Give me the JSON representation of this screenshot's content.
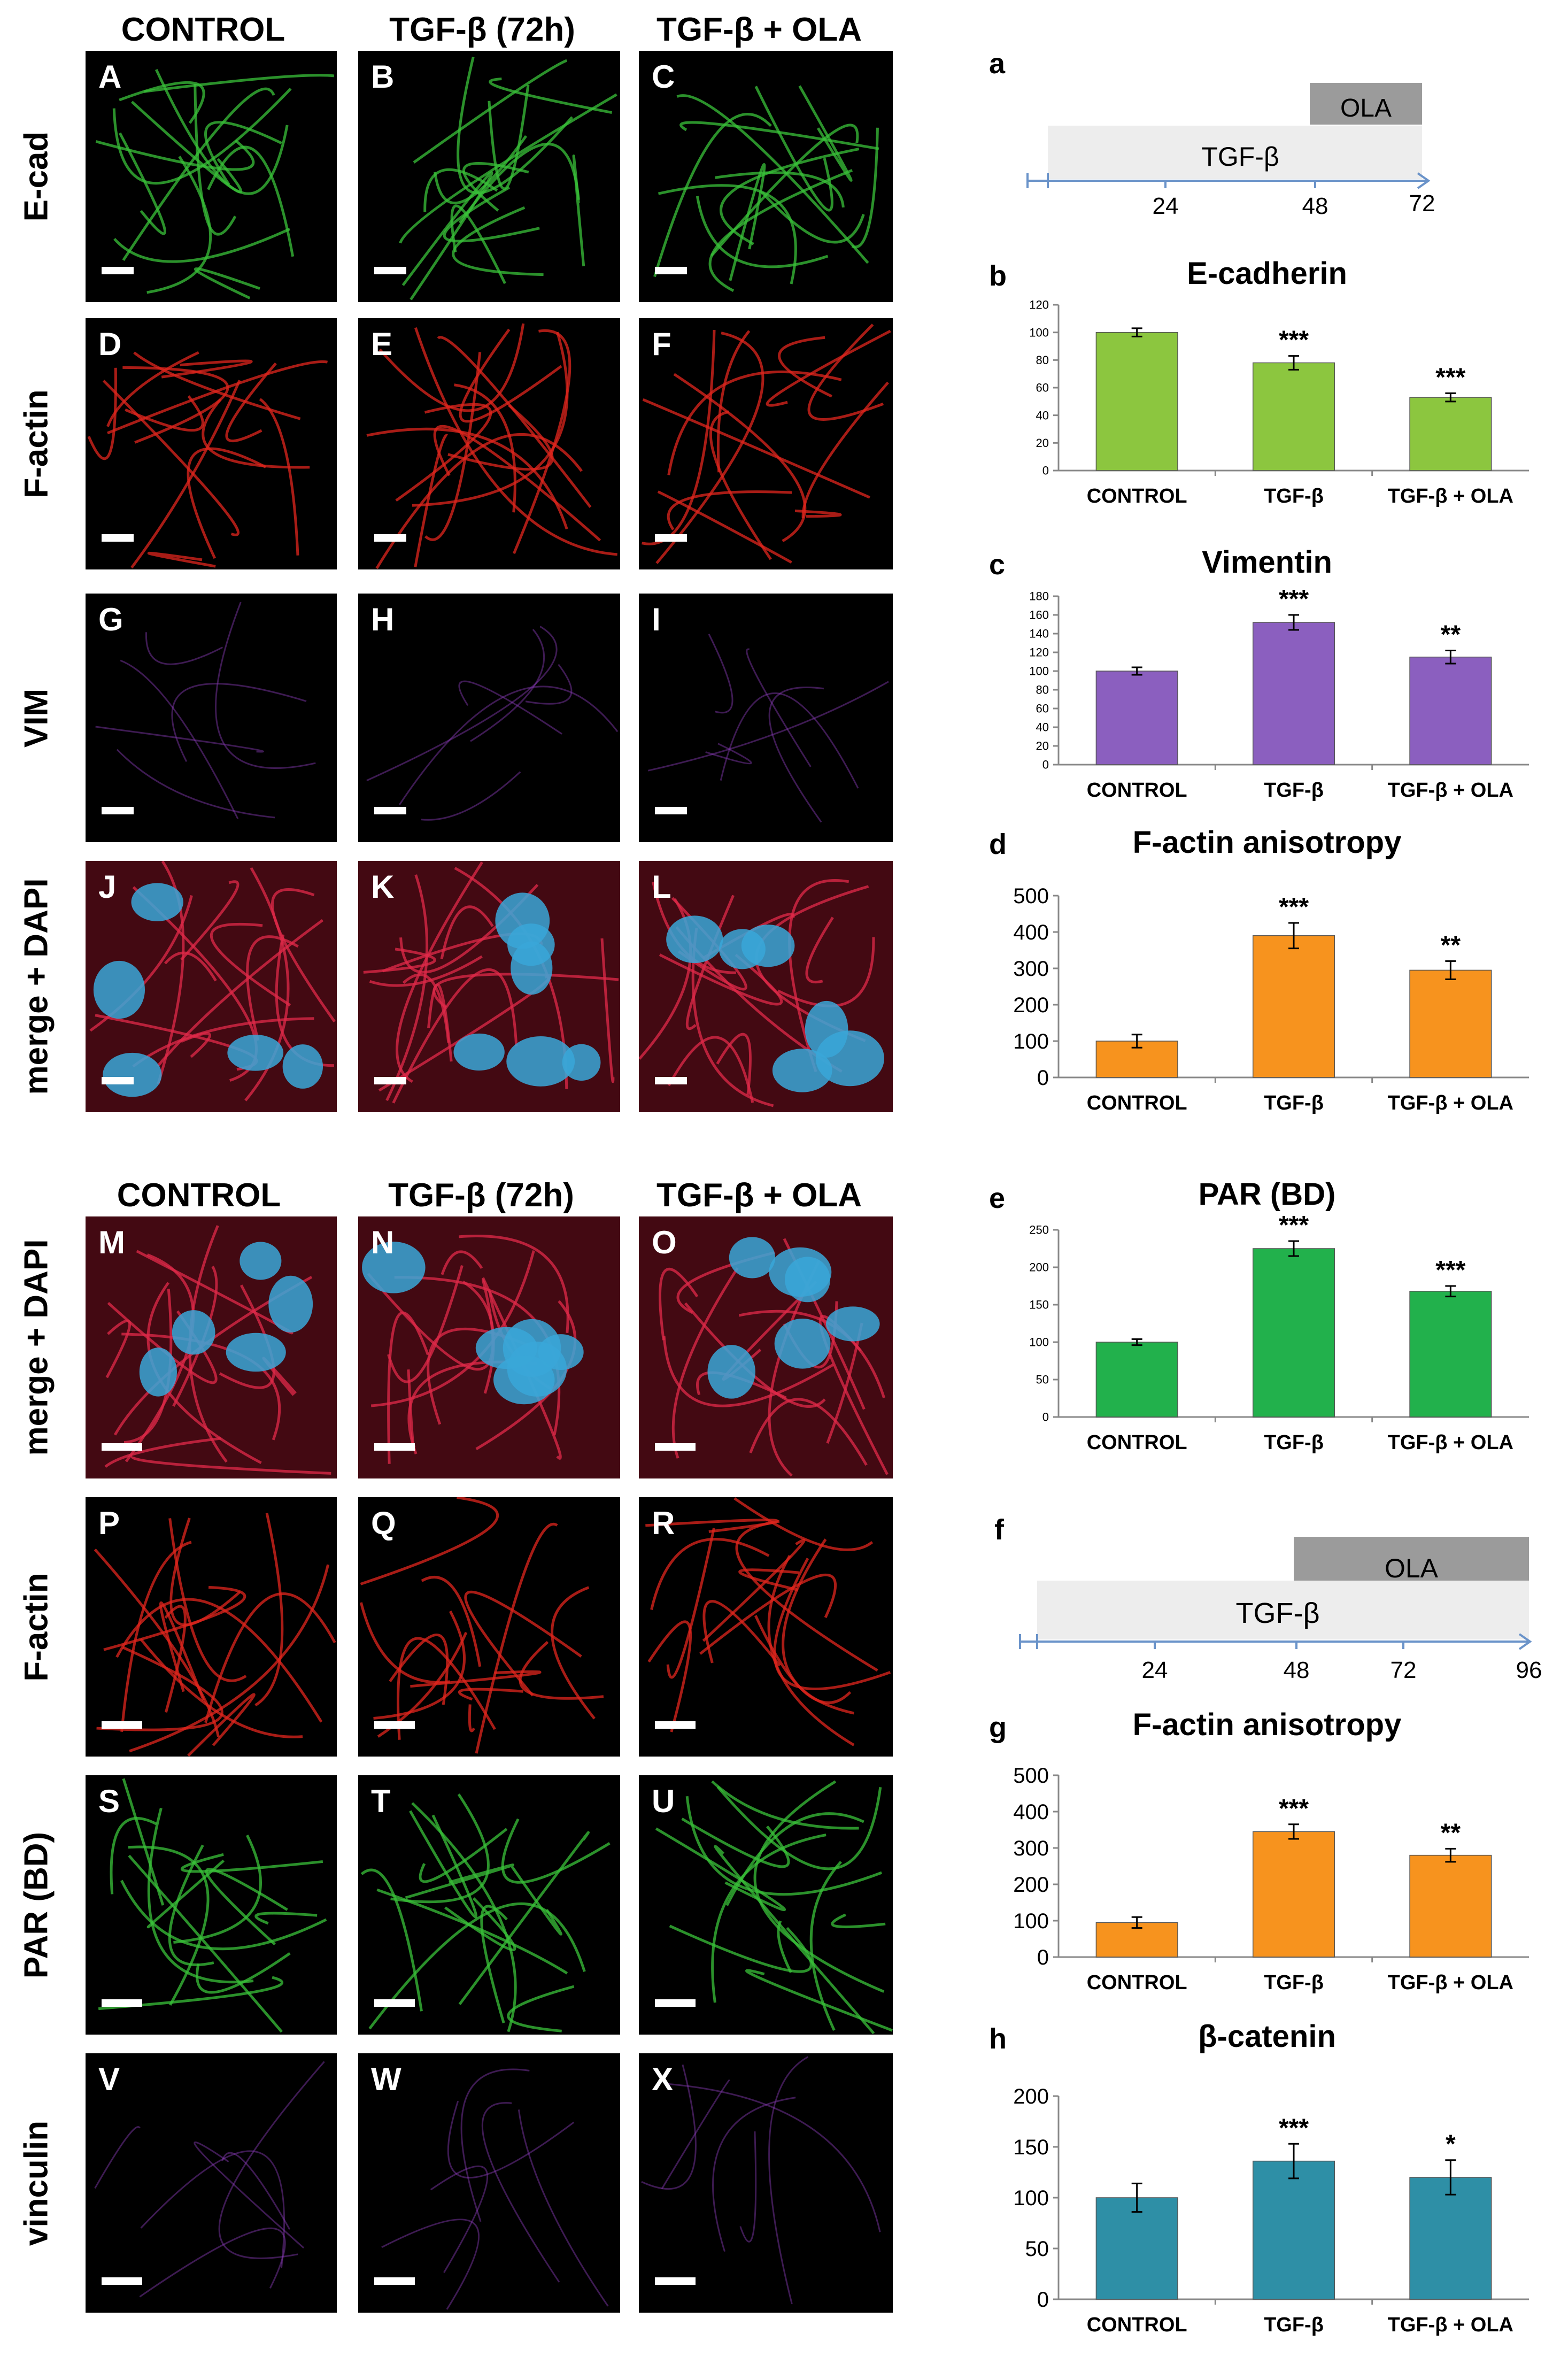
{
  "top_headers": [
    "CONTROL",
    "TGF-β (72h)",
    "TGF-β + OLA"
  ],
  "bottom_headers": [
    "CONTROL",
    "TGF-β (72h)",
    "TGF-β + OLA"
  ],
  "top_rows": [
    {
      "label": "E-cad",
      "letters": [
        "A",
        "B",
        "C"
      ],
      "stain": "green"
    },
    {
      "label": "F-actin",
      "letters": [
        "D",
        "E",
        "F"
      ],
      "stain": "red"
    },
    {
      "label": "VIM",
      "letters": [
        "G",
        "H",
        "I"
      ],
      "stain": "violet"
    },
    {
      "label": "merge + DAPI",
      "letters": [
        "J",
        "K",
        "L"
      ],
      "stain": "merge"
    }
  ],
  "bottom_rows": [
    {
      "label": "merge + DAPI",
      "letters": [
        "M",
        "N",
        "O"
      ],
      "stain": "merge"
    },
    {
      "label": "F-actin",
      "letters": [
        "P",
        "Q",
        "R"
      ],
      "stain": "red"
    },
    {
      "label": "PAR (BD)",
      "letters": [
        "S",
        "T",
        "U"
      ],
      "stain": "green"
    },
    {
      "label": "vinculin",
      "letters": [
        "V",
        "W",
        "X"
      ],
      "stain": "violet"
    }
  ],
  "stain_colors": {
    "green": "#39c13a",
    "red": "#e0251e",
    "violet": "#8a3cb8",
    "merge": "#e02a4a",
    "dapi": "#3aa7d8"
  },
  "timeline_a": {
    "letter": "a",
    "ola": "OLA",
    "tgf": "TGF-β",
    "ticks": [
      "24",
      "48",
      "72"
    ]
  },
  "timeline_f": {
    "letter": "f",
    "ola": "OLA",
    "tgf": "TGF-β",
    "ticks": [
      "24",
      "48",
      "72",
      "96"
    ]
  },
  "chart_data": [
    {
      "letter": "b",
      "type": "bar",
      "title": "E-cadherin",
      "categories": [
        "CONTROL",
        "TGF-β",
        "TGF-β + OLA"
      ],
      "values": [
        100,
        78,
        53
      ],
      "errors": [
        3,
        5,
        3
      ],
      "significance": [
        "",
        "***",
        "***"
      ],
      "ylim": [
        0,
        120
      ],
      "yticks": [
        "0",
        "20",
        "40",
        "60",
        "80",
        "100",
        "120"
      ],
      "color": "#8cc63f"
    },
    {
      "letter": "c",
      "type": "bar",
      "title": "Vimentin",
      "categories": [
        "CONTROL",
        "TGF-β",
        "TGF-β + OLA"
      ],
      "values": [
        100,
        152,
        115
      ],
      "errors": [
        4,
        8,
        7
      ],
      "significance": [
        "",
        "***",
        "**"
      ],
      "ylim": [
        0,
        180
      ],
      "yticks": [
        "0",
        "20",
        "40",
        "60",
        "80",
        "100",
        "120",
        "140",
        "160",
        "180"
      ],
      "color": "#8b5fbf"
    },
    {
      "letter": "d",
      "type": "bar",
      "title": "F-actin anisotropy",
      "categories": [
        "CONTROL",
        "TGF-β",
        "TGF-β + OLA"
      ],
      "values": [
        100,
        390,
        295
      ],
      "errors": [
        18,
        35,
        25
      ],
      "significance": [
        "",
        "***",
        "**"
      ],
      "ylim": [
        0,
        500
      ],
      "yticks": [
        "0",
        "100",
        "200",
        "300",
        "400",
        "500"
      ],
      "color": "#f7931e"
    },
    {
      "letter": "e",
      "type": "bar",
      "title": "PAR (BD)",
      "categories": [
        "CONTROL",
        "TGF-β",
        "TGF-β + OLA"
      ],
      "values": [
        100,
        225,
        168
      ],
      "errors": [
        4,
        10,
        7
      ],
      "significance": [
        "",
        "***",
        "***"
      ],
      "ylim": [
        0,
        250
      ],
      "yticks": [
        "0",
        "50",
        "100",
        "150",
        "200",
        "250"
      ],
      "color": "#22b14c"
    },
    {
      "letter": "g",
      "type": "bar",
      "title": "F-actin anisotropy",
      "categories": [
        "CONTROL",
        "TGF-β",
        "TGF-β + OLA"
      ],
      "values": [
        95,
        345,
        280
      ],
      "errors": [
        15,
        20,
        18
      ],
      "significance": [
        "",
        "***",
        "**"
      ],
      "ylim": [
        0,
        500
      ],
      "yticks": [
        "0",
        "100",
        "200",
        "300",
        "400",
        "500"
      ],
      "color": "#f7931e"
    },
    {
      "letter": "h",
      "type": "bar",
      "title": "β-catenin",
      "categories": [
        "CONTROL",
        "TGF-β",
        "TGF-β + OLA"
      ],
      "values": [
        100,
        136,
        120
      ],
      "errors": [
        14,
        17,
        17
      ],
      "significance": [
        "",
        "***",
        "*"
      ],
      "ylim": [
        0,
        200
      ],
      "yticks": [
        "0",
        "50",
        "100",
        "150",
        "200"
      ],
      "color": "#2e8fa6"
    }
  ]
}
